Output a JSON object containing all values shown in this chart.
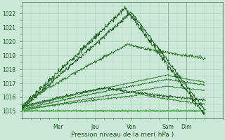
{
  "title": "Pression niveau de la mer( hPa )",
  "bg_color": "#cce8d8",
  "grid_color": "#a8cdb8",
  "line_color_dark": "#1a5c1a",
  "line_color_mid": "#2d7a2d",
  "line_color_light": "#4aaa4a",
  "ylim": [
    1014.5,
    1022.8
  ],
  "yticks": [
    1015,
    1016,
    1017,
    1018,
    1019,
    1020,
    1021,
    1022
  ],
  "xlim": [
    0,
    132
  ],
  "day_ticks": [
    24,
    48,
    72,
    96,
    108,
    120
  ],
  "day_labels": [
    "Mer",
    "Jeu",
    "Ven",
    "Sam",
    "Dim",
    ""
  ],
  "n_hours": 120
}
